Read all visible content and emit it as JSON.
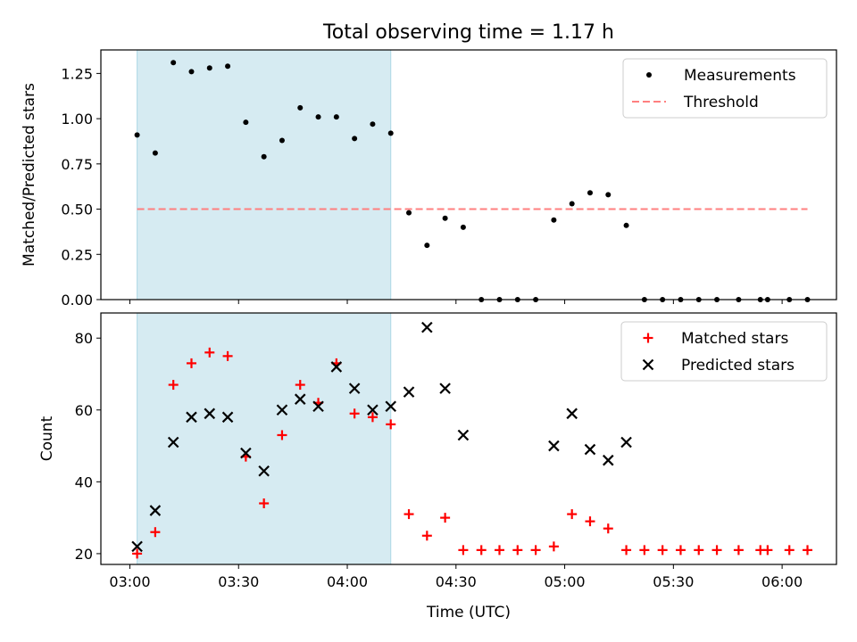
{
  "title": "Total observing time = 1.17 h",
  "colors": {
    "measurement": "#000000",
    "threshold": "#ff7f7f",
    "matched": "#ff0000",
    "predicted": "#000000",
    "shade": "#add8e6"
  },
  "chart_data": [
    {
      "type": "scatter",
      "ylabel": "Matched/Predicted stars",
      "xlim": [
        "02:52",
        "06:15"
      ],
      "ylim": [
        0,
        1.38
      ],
      "yticks": [
        "0.00",
        "0.25",
        "0.50",
        "0.75",
        "1.00",
        "1.25"
      ],
      "shaded_span": [
        "03:02",
        "04:12"
      ],
      "legend_position": "top-right",
      "series": [
        {
          "name": "Measurements",
          "marker": "dot",
          "x": [
            "03:02",
            "03:07",
            "03:12",
            "03:17",
            "03:22",
            "03:27",
            "03:32",
            "03:37",
            "03:42",
            "03:47",
            "03:52",
            "03:57",
            "04:02",
            "04:07",
            "04:12",
            "04:17",
            "04:22",
            "04:27",
            "04:32",
            "04:37",
            "04:42",
            "04:47",
            "04:52",
            "04:57",
            "05:02",
            "05:07",
            "05:12",
            "05:17",
            "05:22",
            "05:27",
            "05:32",
            "05:37",
            "05:42",
            "05:48",
            "05:54",
            "05:56",
            "06:02",
            "06:07"
          ],
          "y": [
            0.91,
            0.81,
            1.31,
            1.26,
            1.28,
            1.29,
            0.98,
            0.79,
            0.88,
            1.06,
            1.01,
            1.01,
            0.89,
            0.97,
            0.92,
            0.48,
            0.3,
            0.45,
            0.4,
            0,
            0,
            0,
            0,
            0.44,
            0.53,
            0.59,
            0.58,
            0.41,
            0,
            0,
            0,
            0,
            0,
            0,
            0,
            0,
            0,
            0
          ]
        }
      ],
      "threshold": {
        "name": "Threshold",
        "y": 0.5,
        "x_range": [
          "03:02",
          "06:07"
        ]
      }
    },
    {
      "type": "scatter",
      "xlabel": "Time (UTC)",
      "ylabel": "Count",
      "xlim": [
        "02:52",
        "06:15"
      ],
      "ylim": [
        17,
        87
      ],
      "yticks": [
        "20",
        "40",
        "60",
        "80"
      ],
      "xticks": [
        "03:00",
        "03:30",
        "04:00",
        "04:30",
        "05:00",
        "05:30",
        "06:00"
      ],
      "shaded_span": [
        "03:02",
        "04:12"
      ],
      "legend_position": "top-right",
      "series": [
        {
          "name": "Matched stars",
          "marker": "plus",
          "x": [
            "03:02",
            "03:07",
            "03:12",
            "03:17",
            "03:22",
            "03:27",
            "03:32",
            "03:37",
            "03:42",
            "03:47",
            "03:52",
            "03:57",
            "04:02",
            "04:07",
            "04:12",
            "04:17",
            "04:22",
            "04:27",
            "04:32",
            "04:37",
            "04:42",
            "04:47",
            "04:52",
            "04:57",
            "05:02",
            "05:07",
            "05:12",
            "05:17",
            "05:22",
            "05:27",
            "05:32",
            "05:37",
            "05:42",
            "05:48",
            "05:54",
            "05:56",
            "06:02",
            "06:07"
          ],
          "y": [
            20,
            26,
            67,
            73,
            76,
            75,
            47,
            34,
            53,
            67,
            62,
            73,
            59,
            58,
            56,
            31,
            25,
            30,
            21,
            21,
            21,
            21,
            21,
            22,
            31,
            29,
            27,
            21,
            21,
            21,
            21,
            21,
            21,
            21,
            21,
            21,
            21,
            21
          ]
        },
        {
          "name": "Predicted stars",
          "marker": "x",
          "x": [
            "03:02",
            "03:07",
            "03:12",
            "03:17",
            "03:22",
            "03:27",
            "03:32",
            "03:37",
            "03:42",
            "03:47",
            "03:52",
            "03:57",
            "04:02",
            "04:07",
            "04:12",
            "04:17",
            "04:22",
            "04:27",
            "04:32",
            "04:57",
            "05:02",
            "05:07",
            "05:12",
            "05:17"
          ],
          "y": [
            22,
            32,
            51,
            58,
            59,
            58,
            48,
            43,
            60,
            63,
            61,
            72,
            66,
            60,
            61,
            65,
            83,
            66,
            53,
            50,
            59,
            49,
            46,
            51
          ]
        }
      ]
    }
  ]
}
